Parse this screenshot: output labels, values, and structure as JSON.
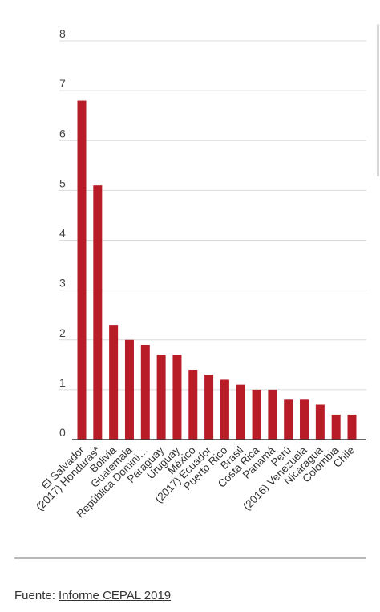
{
  "chart_data": {
    "type": "bar",
    "title": "",
    "xlabel": "",
    "ylabel": "",
    "ylim": [
      0,
      8
    ],
    "yticks": [
      0,
      1,
      2,
      3,
      4,
      5,
      6,
      7,
      8
    ],
    "grid": true,
    "bar_color": "#b71c27",
    "categories": [
      "El Salvador",
      "(2017) Honduras*",
      "Bolivia",
      "Guatemala",
      "República Domini…",
      "Paraguay",
      "Uruguay",
      "México",
      "(2017) Ecuador",
      "Puerto Rico",
      "Brasil",
      "Costa Rica",
      "Panamá",
      "Perú",
      "(2016) Venezuela",
      "Nicaragua",
      "Colombia",
      "Chile"
    ],
    "values": [
      6.8,
      5.1,
      2.3,
      2.0,
      1.9,
      1.7,
      1.7,
      1.4,
      1.3,
      1.2,
      1.1,
      1.0,
      1.0,
      0.8,
      0.8,
      0.7,
      0.5,
      0.5
    ]
  },
  "footer": {
    "prefix": "Fuente:",
    "link_text": "Informe CEPAL 2019"
  }
}
